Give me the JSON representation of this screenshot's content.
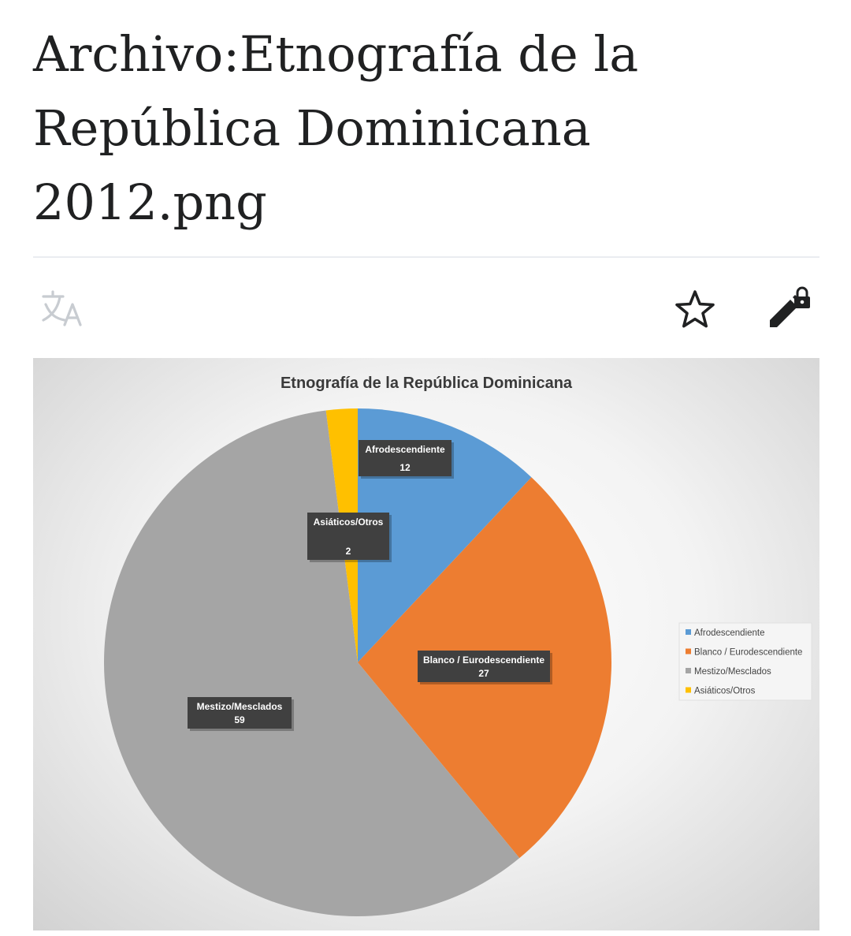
{
  "page": {
    "title_lines": [
      "Archivo:Etnografía de la",
      "República Dominicana",
      "2012.png"
    ]
  },
  "toolbar": {
    "translate_icon": "translate-icon",
    "watch_icon": "star-icon",
    "edit_icon": "edit-lock-icon"
  },
  "chart_data": {
    "type": "pie",
    "title": "Etnografía de la República Dominicana",
    "categories": [
      "Afrodescendiente",
      "Blanco / Eurodescendiente",
      "Mestizo/Mesclados",
      "Asiáticos/Otros"
    ],
    "values": [
      12,
      27,
      59,
      2
    ],
    "colors": [
      "#5b9bd5",
      "#ed7d31",
      "#a5a5a5",
      "#ffc000"
    ],
    "legend_position": "right"
  }
}
